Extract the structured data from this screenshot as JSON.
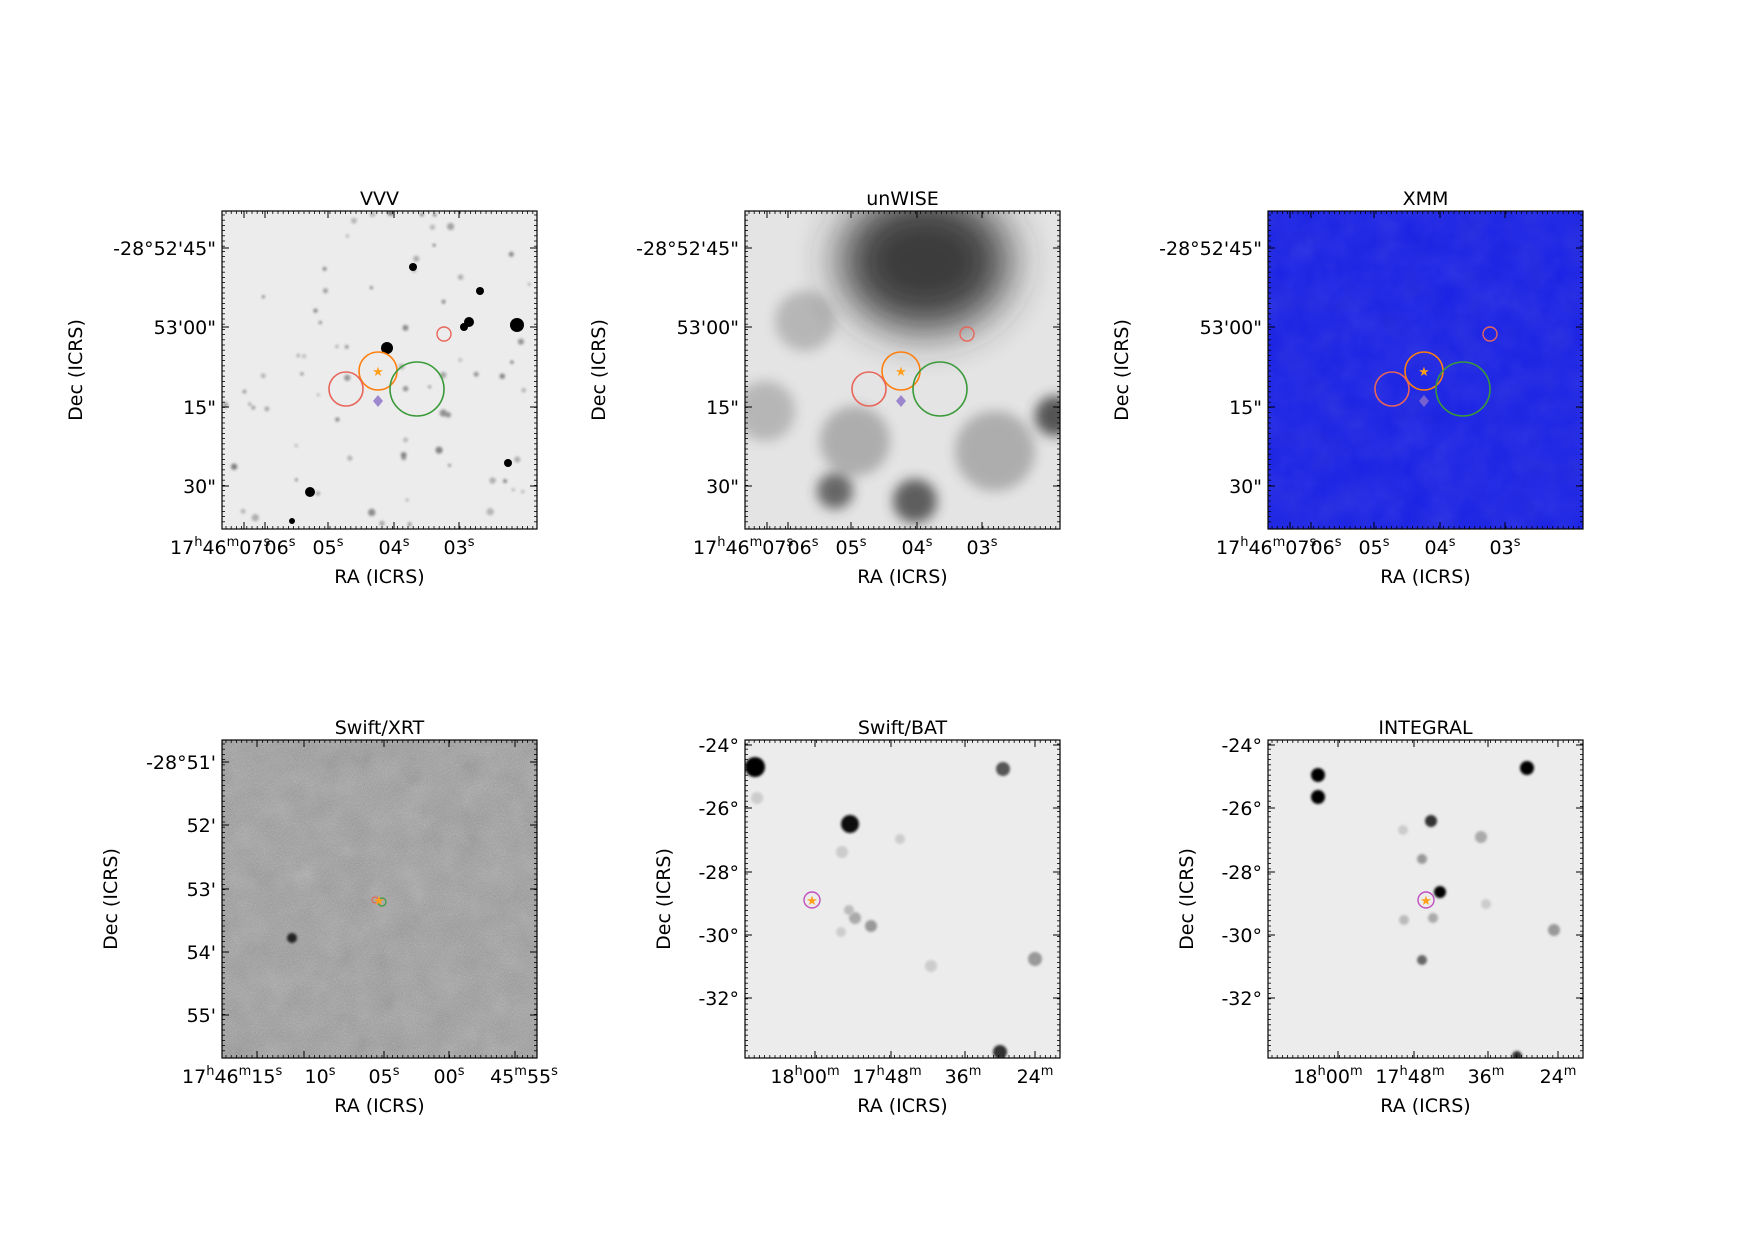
{
  "panels": [
    {
      "title": "VVV",
      "kind": "optical",
      "background": "#ececec",
      "yticks": [
        "-28°52'45\"",
        "53'00\"",
        "15\"",
        "30\""
      ],
      "xticks": [
        "17h46m07s",
        "06s",
        "05s",
        "04s",
        "03s"
      ],
      "xlabel": "RA (ICRS)",
      "ylabel": "Dec (ICRS)"
    },
    {
      "title": "unWISE",
      "kind": "wise",
      "background": "#e4e4e4",
      "yticks": [
        "-28°52'45\"",
        "53'00\"",
        "15\"",
        "30\""
      ],
      "xticks": [
        "17h46m07s",
        "06s",
        "05s",
        "04s",
        "03s"
      ],
      "xlabel": "RA (ICRS)",
      "ylabel": "Dec (ICRS)"
    },
    {
      "title": "XMM",
      "kind": "xmm",
      "background": "#1a22e6",
      "yticks": [
        "-28°52'45\"",
        "53'00\"",
        "15\"",
        "30\""
      ],
      "xticks": [
        "17h46m07s",
        "06s",
        "05s",
        "04s",
        "03s"
      ],
      "xlabel": "RA (ICRS)",
      "ylabel": "Dec (ICRS)"
    },
    {
      "title": "Swift/XRT",
      "kind": "xrt",
      "background": "#9a9a9a",
      "yticks": [
        "-28°51'",
        "52'",
        "53'",
        "54'",
        "55'"
      ],
      "xticks": [
        "17h46m15s",
        "10s",
        "05s",
        "00s",
        "45m55s"
      ],
      "xlabel": "RA (ICRS)",
      "ylabel": "Dec (ICRS)"
    },
    {
      "title": "Swift/BAT",
      "kind": "bat",
      "background": "#ececec",
      "yticks": [
        "-24°",
        "-26°",
        "-28°",
        "-30°",
        "-32°"
      ],
      "xticks": [
        "18h00m",
        "17h48m",
        "36m",
        "24m"
      ],
      "xlabel": "RA (ICRS)",
      "ylabel": "Dec (ICRS)"
    },
    {
      "title": "INTEGRAL",
      "kind": "integral",
      "background": "#ececec",
      "yticks": [
        "-24°",
        "-26°",
        "-28°",
        "-30°",
        "-32°"
      ],
      "xticks": [
        "18h00m",
        "17h48m",
        "36m",
        "24m"
      ],
      "xlabel": "RA (ICRS)",
      "ylabel": "Dec (ICRS)"
    }
  ],
  "colors": {
    "marker_star": "#ff9f1a",
    "circle_orange": "#ff7f0e",
    "circle_red": "#e8655a",
    "circle_green": "#3a9a3a",
    "diamond_purple": "#8a6fc9",
    "circle_magenta": "#c050c0"
  }
}
